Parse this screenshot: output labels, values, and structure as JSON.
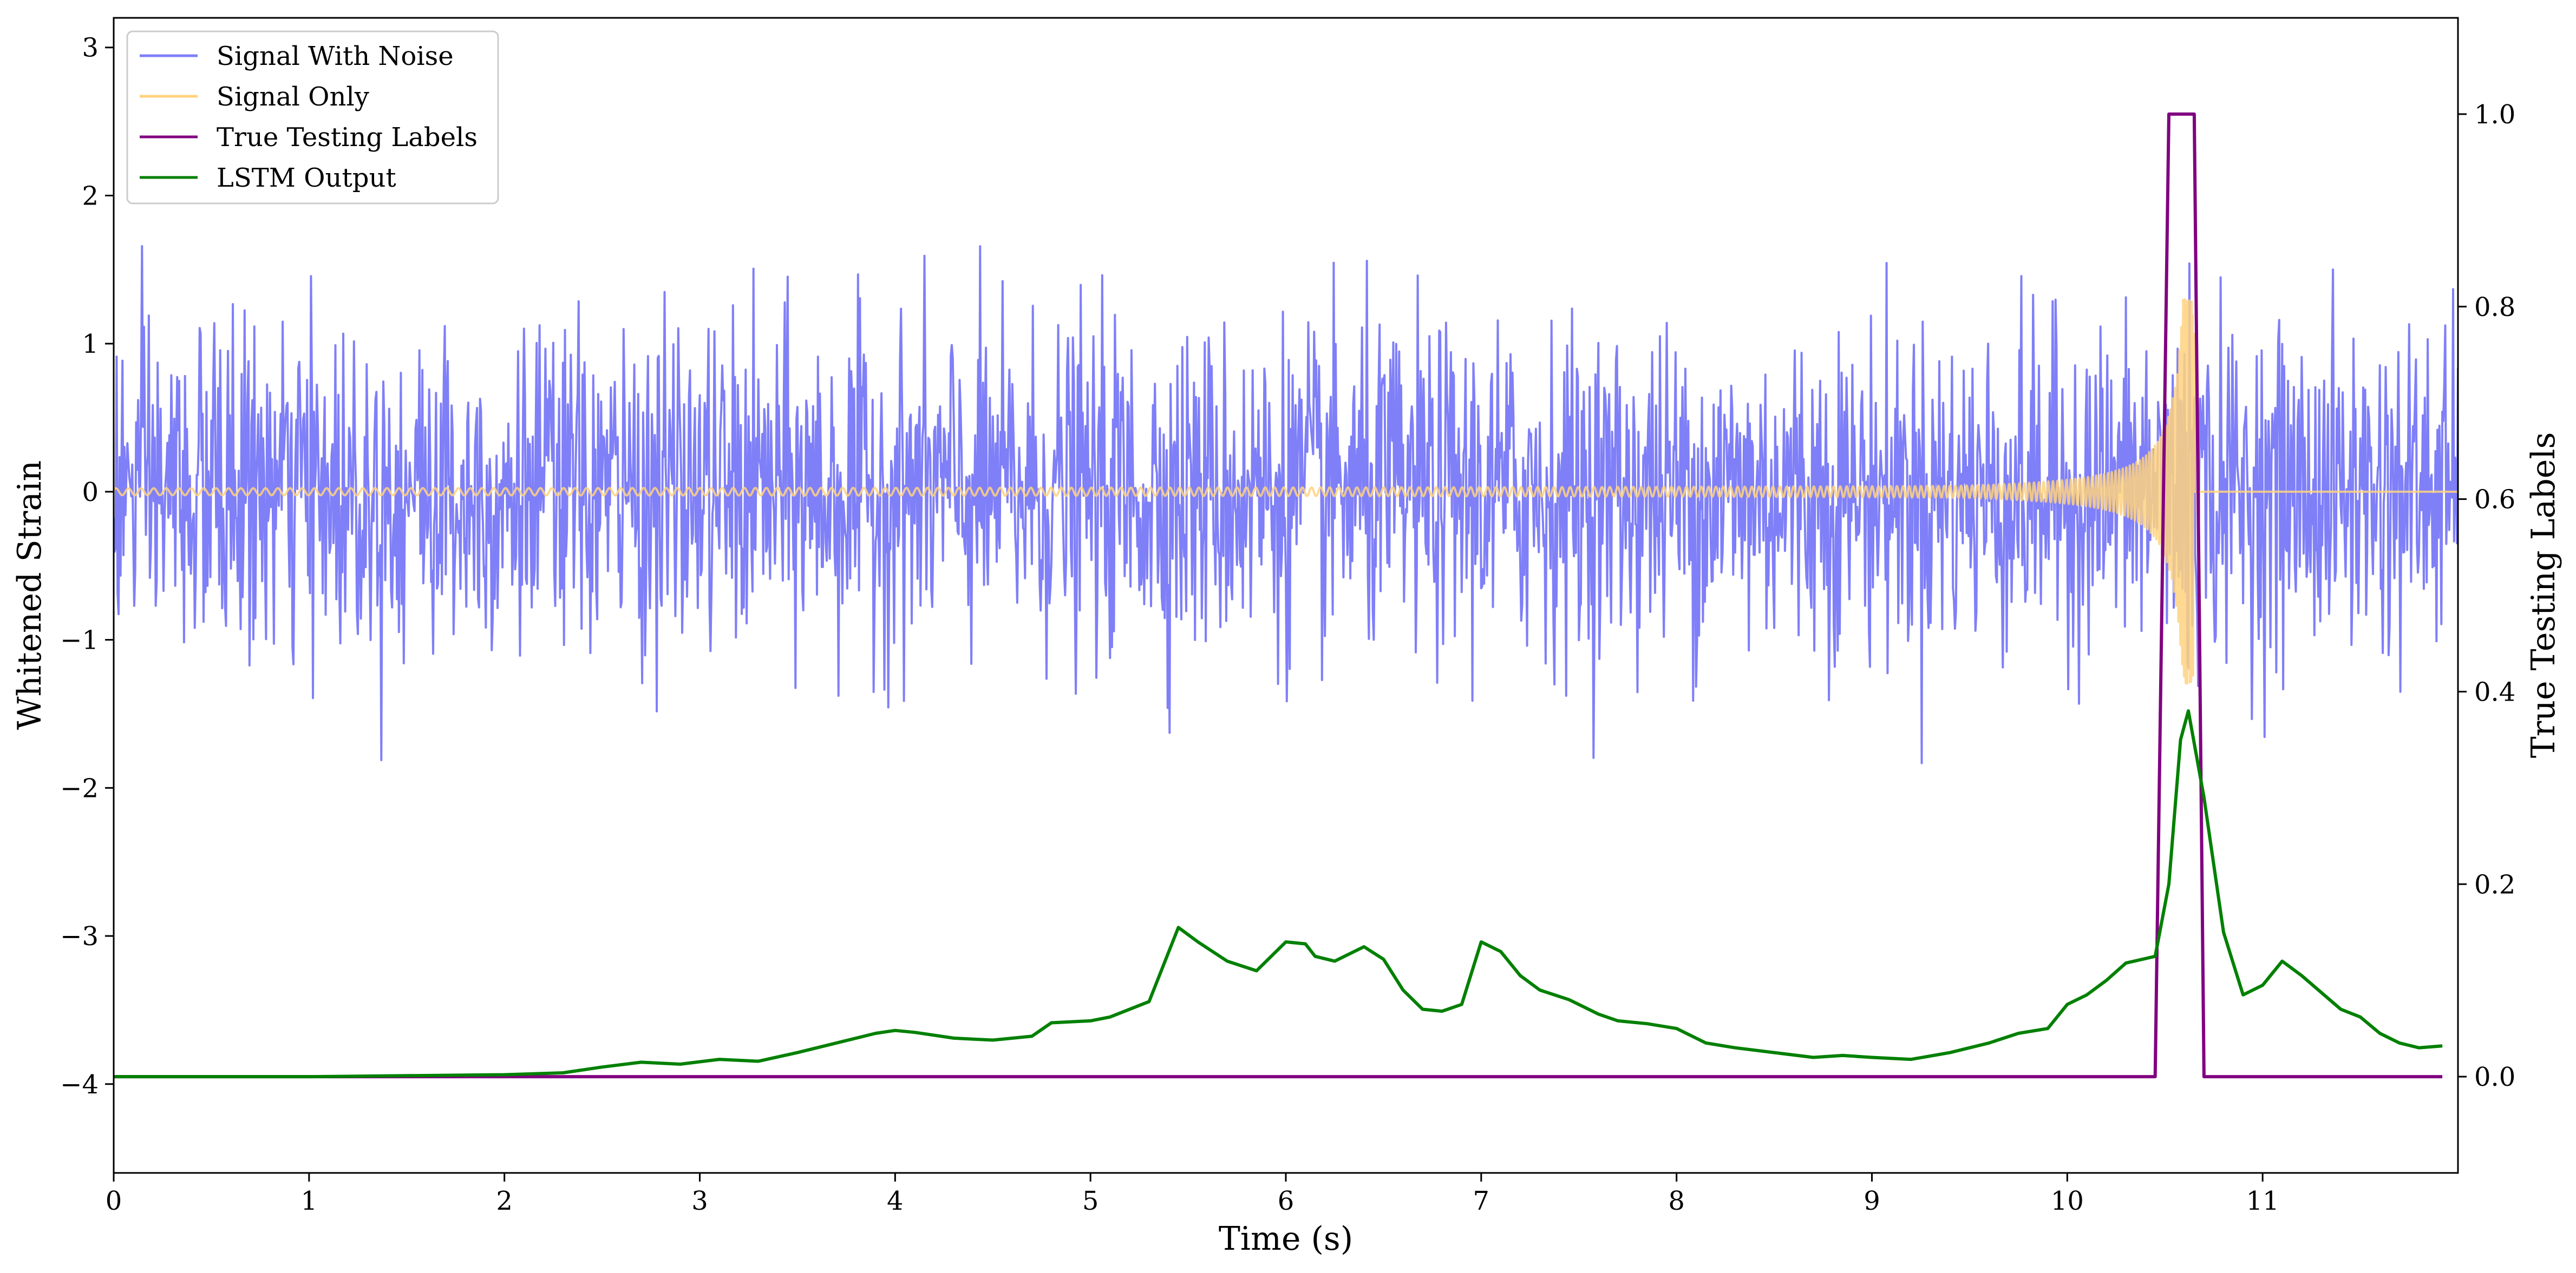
{
  "chart_data": {
    "type": "line",
    "xlabel": "Time (s)",
    "ylabel": "Whitened Strain",
    "y2label": "True Testing Labels",
    "xlim": [
      0,
      12
    ],
    "ylim": [
      -4.6,
      3.2
    ],
    "y2lim": [
      -0.1,
      1.1
    ],
    "x_ticks": [
      0,
      1,
      2,
      3,
      4,
      5,
      6,
      7,
      8,
      9,
      10,
      11
    ],
    "y_ticks": [
      -4,
      -3,
      -2,
      -1,
      0,
      1,
      2,
      3
    ],
    "y2_ticks": [
      0.0,
      0.2,
      0.4,
      0.6,
      0.8,
      1.0
    ],
    "x_tick_labels": [
      "0",
      "1",
      "2",
      "3",
      "4",
      "5",
      "6",
      "7",
      "8",
      "9",
      "10",
      "11"
    ],
    "y_tick_labels": [
      "−4",
      "−3",
      "−2",
      "−1",
      "0",
      "1",
      "2",
      "3"
    ],
    "y2_tick_labels": [
      "0.0",
      "0.2",
      "0.4",
      "0.6",
      "0.8",
      "1.0"
    ],
    "legend_position": "top-left",
    "grid": false,
    "series": [
      {
        "name": "Signal With Noise",
        "axis": "left",
        "color": "#7f7ff8",
        "kind": "noise",
        "sample_rate_hz": 200,
        "std": 0.55,
        "x_range": [
          0,
          12
        ]
      },
      {
        "name": "Signal Only",
        "axis": "left",
        "color": "#ffd27f",
        "kind": "chirp",
        "x_range": [
          0,
          12
        ],
        "merger_time": 10.65,
        "peak_amplitude": 1.3
      },
      {
        "name": "True Testing Labels",
        "axis": "right",
        "color": "#800080",
        "x": [
          0,
          10.45,
          10.52,
          10.65,
          10.7,
          11.92
        ],
        "y": [
          0,
          0,
          1,
          1,
          0,
          0
        ]
      },
      {
        "name": "LSTM Output",
        "axis": "right",
        "color": "#008000",
        "x": [
          0,
          1,
          2,
          2.3,
          2.5,
          2.7,
          2.9,
          3.1,
          3.3,
          3.5,
          3.7,
          3.9,
          4.0,
          4.1,
          4.3,
          4.5,
          4.7,
          4.8,
          5.0,
          5.1,
          5.3,
          5.45,
          5.55,
          5.7,
          5.85,
          6.0,
          6.1,
          6.15,
          6.25,
          6.4,
          6.5,
          6.6,
          6.7,
          6.8,
          6.9,
          7.0,
          7.1,
          7.2,
          7.3,
          7.45,
          7.6,
          7.7,
          7.85,
          8.0,
          8.15,
          8.3,
          8.5,
          8.7,
          8.85,
          9.0,
          9.2,
          9.4,
          9.6,
          9.75,
          9.9,
          10.0,
          10.1,
          10.2,
          10.3,
          10.45,
          10.52,
          10.58,
          10.62,
          10.7,
          10.8,
          10.9,
          11.0,
          11.1,
          11.2,
          11.4,
          11.5,
          11.6,
          11.7,
          11.8,
          11.92
        ],
        "y": [
          0,
          0,
          0.002,
          0.004,
          0.01,
          0.015,
          0.013,
          0.018,
          0.016,
          0.025,
          0.035,
          0.045,
          0.048,
          0.046,
          0.04,
          0.038,
          0.042,
          0.056,
          0.058,
          0.062,
          0.078,
          0.155,
          0.14,
          0.12,
          0.11,
          0.14,
          0.138,
          0.125,
          0.12,
          0.135,
          0.122,
          0.09,
          0.07,
          0.068,
          0.075,
          0.14,
          0.13,
          0.105,
          0.09,
          0.08,
          0.065,
          0.058,
          0.055,
          0.05,
          0.035,
          0.03,
          0.025,
          0.02,
          0.022,
          0.02,
          0.018,
          0.025,
          0.035,
          0.045,
          0.05,
          0.075,
          0.085,
          0.1,
          0.118,
          0.125,
          0.2,
          0.35,
          0.38,
          0.29,
          0.15,
          0.085,
          0.095,
          0.12,
          0.105,
          0.07,
          0.062,
          0.045,
          0.035,
          0.03,
          0.032
        ]
      }
    ]
  }
}
